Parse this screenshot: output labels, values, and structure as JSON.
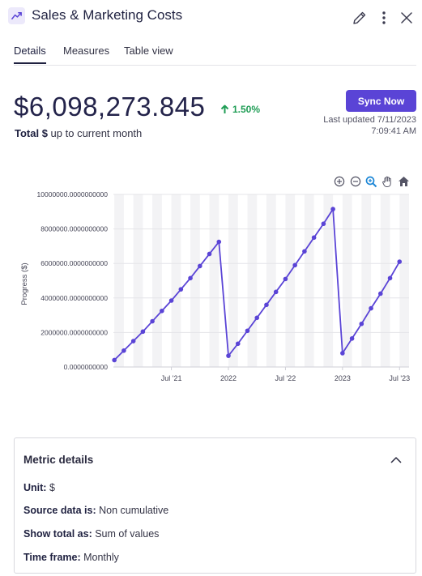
{
  "header": {
    "title": "Sales & Marketing Costs"
  },
  "tabs": [
    {
      "label": "Details",
      "active": true
    },
    {
      "label": "Measures",
      "active": false
    },
    {
      "label": "Table view",
      "active": false
    }
  ],
  "summary": {
    "value": "$6,098,273.845",
    "change": "1.50%",
    "change_direction": "up",
    "subtitle_bold": "Total $",
    "subtitle_rest": " up to current month",
    "sync_label": "Sync Now",
    "updated_line1": "Last updated 7/11/2023",
    "updated_line2": "7:09:41 AM"
  },
  "colors": {
    "accent": "#5a44d6",
    "positive": "#1f9d55",
    "line": "#5a44d6"
  },
  "chart_toolbar": [
    "zoom-in-icon",
    "zoom-out-icon",
    "zoom-select-icon",
    "pan-hand-icon",
    "home-reset-icon"
  ],
  "chart_data": {
    "type": "line",
    "title": "",
    "xlabel": "",
    "ylabel": "Progress ($)",
    "ylim": [
      0,
      10000000
    ],
    "y_ticks": [
      "0.0000000000",
      "2000000.0000000000",
      "4000000.0000000000",
      "6000000.0000000000",
      "8000000.0000000000",
      "10000000.0000000000"
    ],
    "x_ticks": [
      {
        "label": "Jul '21",
        "at": "2021-07"
      },
      {
        "label": "2022",
        "at": "2022-01"
      },
      {
        "label": "Jul '22",
        "at": "2022-07"
      },
      {
        "label": "2023",
        "at": "2023-01"
      },
      {
        "label": "Jul '23",
        "at": "2023-07"
      }
    ],
    "x_range": [
      "2021-01",
      "2023-08"
    ],
    "grid": "alternating vertical bands",
    "series": [
      {
        "values": [
          {
            "x": "2021-01",
            "y": 400000
          },
          {
            "x": "2021-02",
            "y": 950000
          },
          {
            "x": "2021-03",
            "y": 1500000
          },
          {
            "x": "2021-04",
            "y": 2050000
          },
          {
            "x": "2021-05",
            "y": 2650000
          },
          {
            "x": "2021-06",
            "y": 3250000
          },
          {
            "x": "2021-07",
            "y": 3850000
          },
          {
            "x": "2021-08",
            "y": 4500000
          },
          {
            "x": "2021-09",
            "y": 5150000
          },
          {
            "x": "2021-10",
            "y": 5850000
          },
          {
            "x": "2021-11",
            "y": 6550000
          },
          {
            "x": "2021-12",
            "y": 7250000
          },
          {
            "x": "2022-01",
            "y": 650000
          },
          {
            "x": "2022-02",
            "y": 1350000
          },
          {
            "x": "2022-03",
            "y": 2100000
          },
          {
            "x": "2022-04",
            "y": 2850000
          },
          {
            "x": "2022-05",
            "y": 3600000
          },
          {
            "x": "2022-06",
            "y": 4350000
          },
          {
            "x": "2022-07",
            "y": 5100000
          },
          {
            "x": "2022-08",
            "y": 5900000
          },
          {
            "x": "2022-09",
            "y": 6700000
          },
          {
            "x": "2022-10",
            "y": 7500000
          },
          {
            "x": "2022-11",
            "y": 8300000
          },
          {
            "x": "2022-12",
            "y": 9150000
          },
          {
            "x": "2023-01",
            "y": 800000
          },
          {
            "x": "2023-02",
            "y": 1650000
          },
          {
            "x": "2023-03",
            "y": 2500000
          },
          {
            "x": "2023-04",
            "y": 3400000
          },
          {
            "x": "2023-05",
            "y": 4250000
          },
          {
            "x": "2023-06",
            "y": 5150000
          },
          {
            "x": "2023-07",
            "y": 6100000
          }
        ]
      }
    ]
  },
  "metric_details": {
    "title": "Metric details",
    "rows": [
      {
        "label": "Unit:",
        "value": " $"
      },
      {
        "label": "Source data is:",
        "value": " Non cumulative"
      },
      {
        "label": "Show total as:",
        "value": " Sum of values"
      },
      {
        "label": "Time frame:",
        "value": " Monthly"
      }
    ]
  }
}
